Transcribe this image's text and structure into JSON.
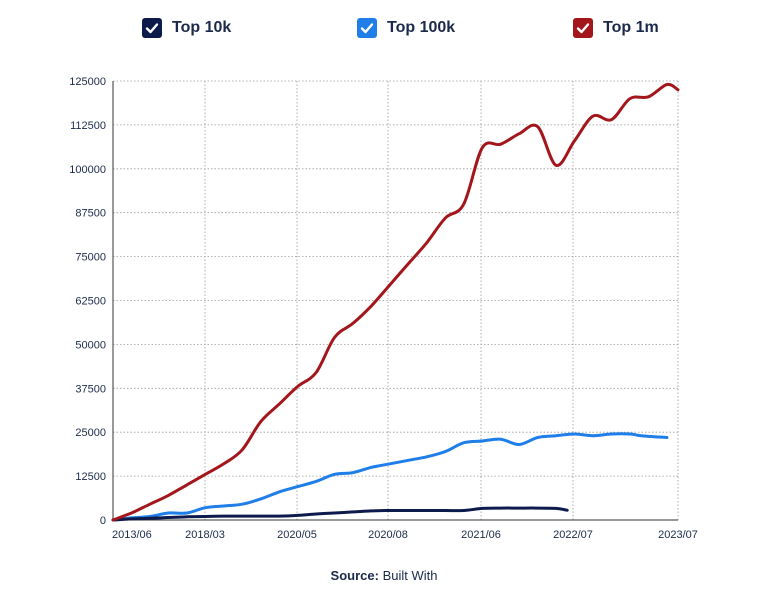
{
  "legend": [
    {
      "label": "Top 10k",
      "color": "#0d1b4c"
    },
    {
      "label": "Top 100k",
      "color": "#1f7ee8"
    },
    {
      "label": "Top 1m",
      "color": "#a3171c"
    }
  ],
  "source": {
    "prefix": "Source:",
    "text": "Built With"
  },
  "chart_data": {
    "type": "line",
    "title": "",
    "xlabel": "",
    "ylabel": "",
    "ylim": [
      0,
      125000
    ],
    "yticks": [
      "0",
      "12500",
      "25000",
      "37500",
      "50000",
      "62500",
      "75000",
      "87500",
      "100000",
      "112500",
      "125000"
    ],
    "xlim": [
      "2013/06",
      "2023/07"
    ],
    "xticks": [
      "2013/06",
      "2018/03",
      "2020/05",
      "2020/08",
      "2021/06",
      "2022/07",
      "2023/07"
    ],
    "grid": true,
    "legend_position": "top",
    "series": [
      {
        "name": "Top 10k",
        "color": "#0d1b4c",
        "points": [
          [
            0.0,
            0
          ],
          [
            0.5,
            300
          ],
          [
            1.0,
            500
          ],
          [
            1.5,
            700
          ],
          [
            2.0,
            900
          ],
          [
            2.5,
            1000
          ],
          [
            3.0,
            1100
          ],
          [
            3.5,
            1100
          ],
          [
            4.0,
            1100
          ],
          [
            4.5,
            1100
          ],
          [
            5.0,
            1300
          ],
          [
            5.5,
            1700
          ],
          [
            6.0,
            2000
          ],
          [
            6.5,
            2300
          ],
          [
            7.0,
            2600
          ],
          [
            7.5,
            2700
          ],
          [
            8.0,
            2700
          ],
          [
            8.5,
            2700
          ],
          [
            9.0,
            2700
          ],
          [
            9.5,
            2700
          ],
          [
            10.0,
            3300
          ],
          [
            10.5,
            3400
          ],
          [
            11.0,
            3400
          ],
          [
            11.5,
            3400
          ],
          [
            12.0,
            3300
          ],
          [
            12.3,
            2800
          ]
        ]
      },
      {
        "name": "Top 100k",
        "color": "#1f7ee8",
        "points": [
          [
            0.0,
            0
          ],
          [
            0.5,
            600
          ],
          [
            1.0,
            1000
          ],
          [
            1.5,
            2000
          ],
          [
            2.0,
            2000
          ],
          [
            2.5,
            3500
          ],
          [
            3.0,
            4000
          ],
          [
            3.5,
            4500
          ],
          [
            4.0,
            6000
          ],
          [
            4.5,
            8000
          ],
          [
            5.0,
            9500
          ],
          [
            5.5,
            11000
          ],
          [
            6.0,
            13000
          ],
          [
            6.5,
            13500
          ],
          [
            7.0,
            15000
          ],
          [
            7.5,
            16000
          ],
          [
            8.0,
            17000
          ],
          [
            8.5,
            18000
          ],
          [
            9.0,
            19500
          ],
          [
            9.5,
            22000
          ],
          [
            10.0,
            22500
          ],
          [
            10.5,
            23000
          ],
          [
            11.0,
            21500
          ],
          [
            11.5,
            23500
          ],
          [
            12.0,
            24000
          ],
          [
            12.5,
            24500
          ],
          [
            13.0,
            24000
          ],
          [
            13.5,
            24500
          ],
          [
            14.0,
            24500
          ],
          [
            14.3,
            24000
          ],
          [
            15.0,
            23500
          ]
        ]
      },
      {
        "name": "Top 1m",
        "color": "#a3171c",
        "points": [
          [
            0.0,
            0
          ],
          [
            0.5,
            2000
          ],
          [
            1.0,
            4500
          ],
          [
            1.5,
            7000
          ],
          [
            2.0,
            10000
          ],
          [
            2.5,
            13000
          ],
          [
            3.0,
            16000
          ],
          [
            3.5,
            20000
          ],
          [
            4.0,
            28000
          ],
          [
            4.5,
            33000
          ],
          [
            5.0,
            38000
          ],
          [
            5.5,
            42000
          ],
          [
            6.0,
            52000
          ],
          [
            6.5,
            56000
          ],
          [
            7.0,
            61000
          ],
          [
            7.5,
            67000
          ],
          [
            8.0,
            73000
          ],
          [
            8.5,
            79000
          ],
          [
            9.0,
            86000
          ],
          [
            9.5,
            90000
          ],
          [
            10.0,
            106000
          ],
          [
            10.5,
            107000
          ],
          [
            11.0,
            110000
          ],
          [
            11.5,
            112000
          ],
          [
            12.0,
            101000
          ],
          [
            12.5,
            108000
          ],
          [
            13.0,
            115000
          ],
          [
            13.5,
            114000
          ],
          [
            14.0,
            120000
          ],
          [
            14.5,
            120500
          ],
          [
            15.0,
            124000
          ],
          [
            15.3,
            122500
          ]
        ]
      }
    ]
  }
}
